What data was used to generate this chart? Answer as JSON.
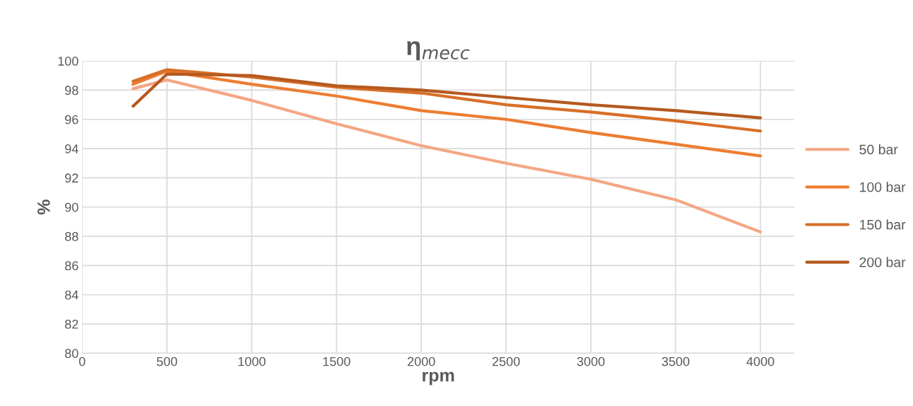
{
  "chart_data": {
    "type": "line",
    "title": "η$_{mecc}$",
    "xlabel": "rpm",
    "ylabel": "%",
    "x": [
      300,
      500,
      1000,
      1500,
      2000,
      2500,
      3000,
      3500,
      4000
    ],
    "series": [
      {
        "name": "50 bar",
        "color": "#f4a683",
        "values": [
          98.1,
          98.7,
          97.3,
          95.7,
          94.2,
          93.0,
          91.9,
          90.5,
          88.3
        ]
      },
      {
        "name": "100 bar",
        "color": "#ed7d31",
        "values": [
          98.4,
          99.3,
          98.4,
          97.6,
          96.6,
          96.0,
          95.1,
          94.3,
          93.5
        ]
      },
      {
        "name": "150 bar",
        "color": "#d86f28",
        "values": [
          98.6,
          99.4,
          98.9,
          98.2,
          97.8,
          97.0,
          96.5,
          95.9,
          95.2
        ]
      },
      {
        "name": "200 bar",
        "color": "#b5591f",
        "values": [
          96.9,
          99.1,
          99.0,
          98.3,
          98.0,
          97.5,
          97.0,
          96.6,
          96.1
        ]
      }
    ],
    "xlim": [
      0,
      4200
    ],
    "xticks": [
      0,
      500,
      1000,
      1500,
      2000,
      2500,
      3000,
      3500,
      4000
    ],
    "ylim": [
      80,
      100
    ],
    "yticks": [
      80,
      82,
      84,
      86,
      88,
      90,
      92,
      94,
      96,
      98,
      100
    ],
    "grid": true,
    "legend": "right",
    "marker": "none",
    "line_style": "solid"
  }
}
